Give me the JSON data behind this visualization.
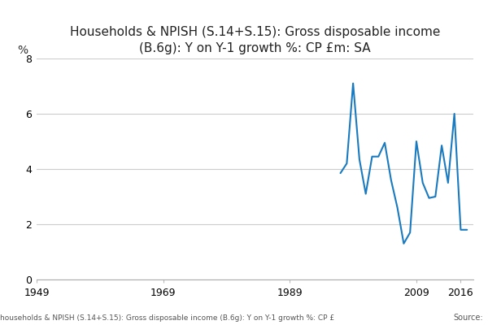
{
  "title": "Households & NPISH (S.14+S.15): Gross disposable income\n(B.6g): Y on Y-1 growth %: CP £m: SA",
  "ylabel": "%",
  "footer": "households & NPISH (S.14+S.15): Gross disposable income (B.6g): Y on Y-1 growth %: CP £",
  "source_label": "Source:",
  "line_color": "#1a7abf",
  "background_color": "#ffffff",
  "xlim": [
    1949,
    2018
  ],
  "ylim": [
    0,
    8
  ],
  "yticks": [
    0,
    2,
    4,
    6,
    8
  ],
  "xticks": [
    1949,
    1969,
    1989,
    2009,
    2016
  ],
  "years": [
    1997,
    1998,
    1999,
    2000,
    2001,
    2002,
    2003,
    2004,
    2005,
    2006,
    2007,
    2008,
    2009,
    2010,
    2011,
    2012,
    2013,
    2014,
    2015,
    2016,
    2017
  ],
  "values": [
    3.85,
    4.2,
    7.1,
    4.35,
    3.1,
    4.45,
    4.45,
    4.95,
    3.6,
    2.6,
    1.3,
    1.7,
    5.0,
    3.5,
    2.95,
    3.0,
    4.85,
    3.5,
    6.0,
    1.8,
    1.8
  ]
}
